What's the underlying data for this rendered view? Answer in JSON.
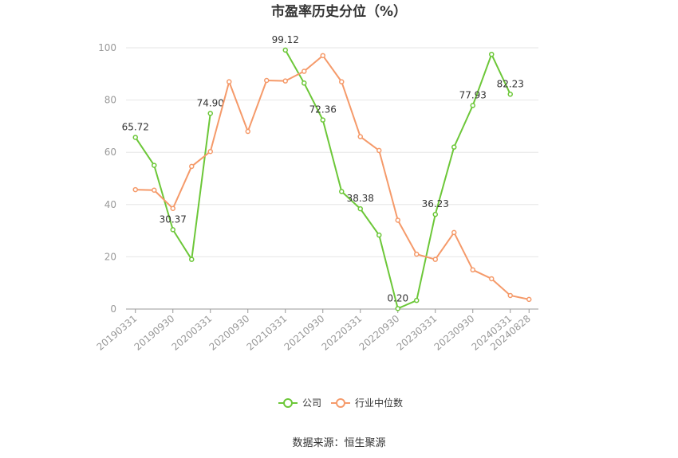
{
  "chart_data": {
    "type": "line",
    "title": "市盈率历史分位（%）",
    "ylim": [
      0,
      100
    ],
    "yticks": [
      "0",
      "20",
      "40",
      "60",
      "80",
      "100"
    ],
    "xtick_labels": [
      "20190331",
      "20190930",
      "20200331",
      "20200930",
      "20210331",
      "20210930",
      "20220331",
      "20220930",
      "20230331",
      "20230930",
      "20240331",
      "20240828"
    ],
    "x_points": [
      "20190331",
      "20190630",
      "20190930",
      "20191231",
      "20200331",
      "20200630",
      "20200930",
      "20201231",
      "20210331",
      "20210630",
      "20210930",
      "20211231",
      "20220331",
      "20220630",
      "20220930",
      "20221231",
      "20230331",
      "20230630",
      "20230930",
      "20231231",
      "20240331",
      "20240828"
    ],
    "series": [
      {
        "name": "公司",
        "color": "#6cc738",
        "values": [
          65.72,
          55,
          30.37,
          19,
          74.9,
          null,
          null,
          null,
          99.12,
          86.5,
          72.36,
          45,
          38.38,
          28.3,
          0.2,
          3.3,
          36.23,
          62,
          77.93,
          97.5,
          82.23,
          null
        ],
        "labels": {
          "0": "65.72",
          "2": "30.37",
          "4": "74.90",
          "8": "99.12",
          "10": "72.36",
          "12": "38.38",
          "14": "0.20",
          "16": "36.23",
          "18": "77.93",
          "20": "82.23"
        }
      },
      {
        "name": "行业中位数",
        "color": "#f59a6a",
        "values": [
          45.7,
          45.5,
          38.5,
          54.6,
          60.3,
          87,
          68,
          87.5,
          87.3,
          91,
          97,
          87,
          66,
          60.7,
          34,
          21,
          19,
          29.3,
          15,
          11.6,
          5.2,
          3.7
        ]
      }
    ]
  },
  "footer": {
    "source": "数据来源：恒生聚源"
  }
}
